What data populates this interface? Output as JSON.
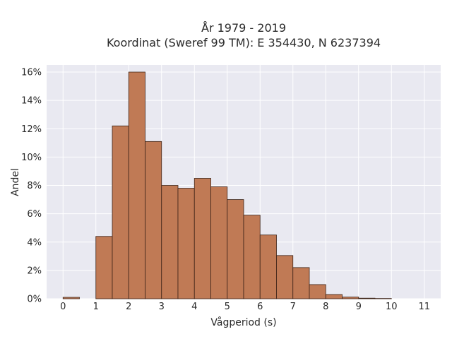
{
  "chart_data": {
    "type": "bar",
    "title_line1": "År 1979 - 2019",
    "title_line2": "Koordinat (Sweref 99 TM): E 354430, N 6237394",
    "xlabel": "Vågperiod (s)",
    "ylabel": "Andel",
    "xlim": [
      -0.5,
      11.5
    ],
    "ylim": [
      0,
      16.5
    ],
    "x_ticks": [
      0,
      1,
      2,
      3,
      4,
      5,
      6,
      7,
      8,
      9,
      10,
      11
    ],
    "y_ticks": [
      0,
      2,
      4,
      6,
      8,
      10,
      12,
      14,
      16
    ],
    "y_tick_labels": [
      "0%",
      "2%",
      "4%",
      "6%",
      "8%",
      "10%",
      "12%",
      "14%",
      "16%"
    ],
    "bin_width": 0.5,
    "bins": [
      {
        "start": 0.0,
        "value": 0.1
      },
      {
        "start": 1.0,
        "value": 4.4
      },
      {
        "start": 1.5,
        "value": 12.2
      },
      {
        "start": 2.0,
        "value": 16.0
      },
      {
        "start": 2.5,
        "value": 11.1
      },
      {
        "start": 3.0,
        "value": 8.0
      },
      {
        "start": 3.5,
        "value": 7.8
      },
      {
        "start": 4.0,
        "value": 8.5
      },
      {
        "start": 4.5,
        "value": 7.9
      },
      {
        "start": 5.0,
        "value": 7.0
      },
      {
        "start": 5.5,
        "value": 5.9
      },
      {
        "start": 6.0,
        "value": 4.5
      },
      {
        "start": 6.5,
        "value": 3.05
      },
      {
        "start": 7.0,
        "value": 2.2
      },
      {
        "start": 7.5,
        "value": 1.0
      },
      {
        "start": 8.0,
        "value": 0.3
      },
      {
        "start": 8.5,
        "value": 0.12
      },
      {
        "start": 9.0,
        "value": 0.04
      },
      {
        "start": 9.5,
        "value": 0.02
      }
    ],
    "grid": true,
    "bar_color": "#c07a55",
    "bar_edge_color": "#3d2418",
    "plot_background": "#e9e9f1",
    "grid_color": "#ffffff"
  }
}
